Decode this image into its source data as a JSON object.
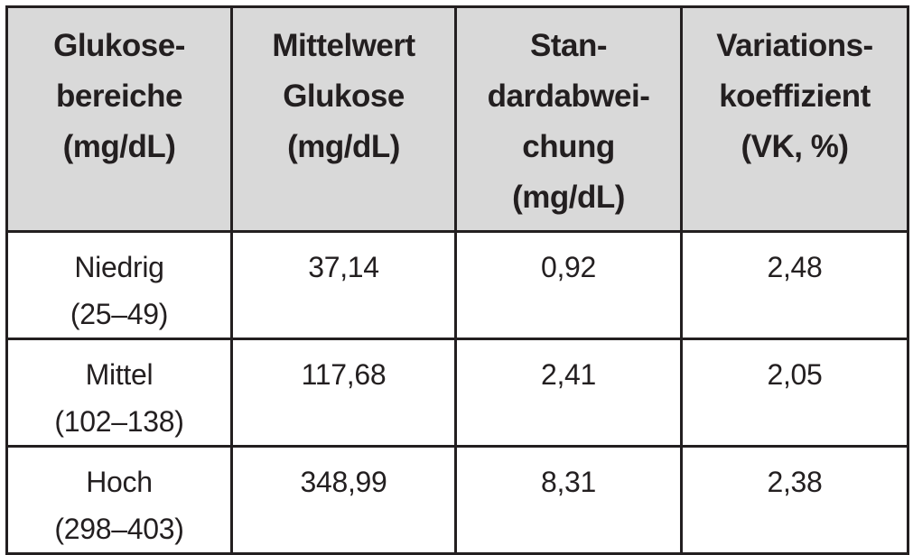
{
  "table": {
    "header": [
      [
        "Glukose-",
        "bereiche",
        "(mg/dL)"
      ],
      [
        "Mittelwert",
        "Glukose",
        "(mg/dL)"
      ],
      [
        "Stan-",
        "dardabwei-",
        "chung",
        "(mg/dL)"
      ],
      [
        "Variations-",
        "koeffizient",
        "(VK, %)"
      ]
    ],
    "rows": [
      [
        [
          "Niedrig",
          "(25–49)"
        ],
        [
          "37,14"
        ],
        [
          "0,92"
        ],
        [
          "2,48"
        ]
      ],
      [
        [
          "Mittel",
          "(102–138)"
        ],
        [
          "117,68"
        ],
        [
          "2,41"
        ],
        [
          "2,05"
        ]
      ],
      [
        [
          "Hoch",
          "(298–403)"
        ],
        [
          "348,99"
        ],
        [
          "8,31"
        ],
        [
          "2,38"
        ]
      ]
    ]
  }
}
